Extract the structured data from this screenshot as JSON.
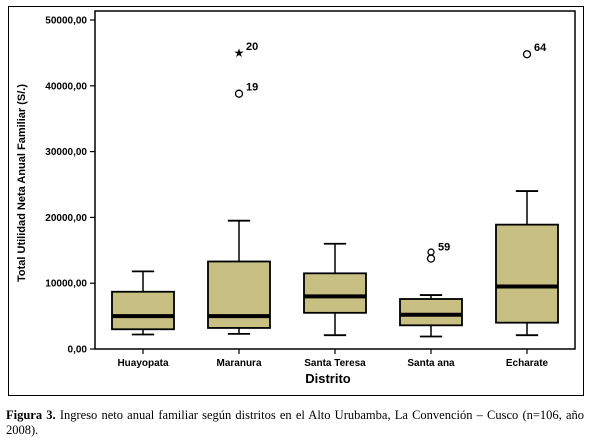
{
  "chart_data": {
    "type": "boxplot",
    "xlabel": "Distrito",
    "ylabel": "Total Utilidad Neta Anual Familiar (S/.)",
    "ylim": [
      0,
      50000
    ],
    "y_ticks": [
      0,
      10000,
      20000,
      30000,
      40000,
      50000
    ],
    "y_tick_labels": [
      "0,00",
      "10000,00",
      "20000,00",
      "30000,00",
      "40000,00",
      "50000,00"
    ],
    "box_color": "#c8bf82",
    "grid": false,
    "categories": [
      "Huayopata",
      "Maranura",
      "Santa Teresa",
      "Santa ana",
      "Echarate"
    ],
    "boxes": [
      {
        "category": "Huayopata",
        "whisker_low": 2200,
        "q1": 3000,
        "median": 5000,
        "q3": 8700,
        "whisker_high": 11800
      },
      {
        "category": "Maranura",
        "whisker_low": 2300,
        "q1": 3200,
        "median": 5000,
        "q3": 13300,
        "whisker_high": 19500
      },
      {
        "category": "Santa Teresa",
        "whisker_low": 2100,
        "q1": 5500,
        "median": 8000,
        "q3": 11500,
        "whisker_high": 16000
      },
      {
        "category": "Santa ana",
        "whisker_low": 1900,
        "q1": 3600,
        "median": 5200,
        "q3": 7600,
        "whisker_high": 8200
      },
      {
        "category": "Echarate",
        "whisker_low": 2100,
        "q1": 4000,
        "median": 9500,
        "q3": 18900,
        "whisker_high": 24000
      }
    ],
    "outliers": [
      {
        "category": "Maranura",
        "value": 45000,
        "marker": "star",
        "label": "20"
      },
      {
        "category": "Maranura",
        "value": 38800,
        "marker": "circle",
        "label": "19"
      },
      {
        "category": "Santa ana",
        "value": 14200,
        "marker": "circle-double",
        "label": "59"
      },
      {
        "category": "Echarate",
        "value": 44800,
        "marker": "circle",
        "label": "64"
      }
    ]
  },
  "caption": {
    "label": "Figura 3.",
    "text": " Ingreso neto anual familiar según distritos en el Alto Urubamba, La Convención – Cusco (n=106, año 2008)."
  }
}
